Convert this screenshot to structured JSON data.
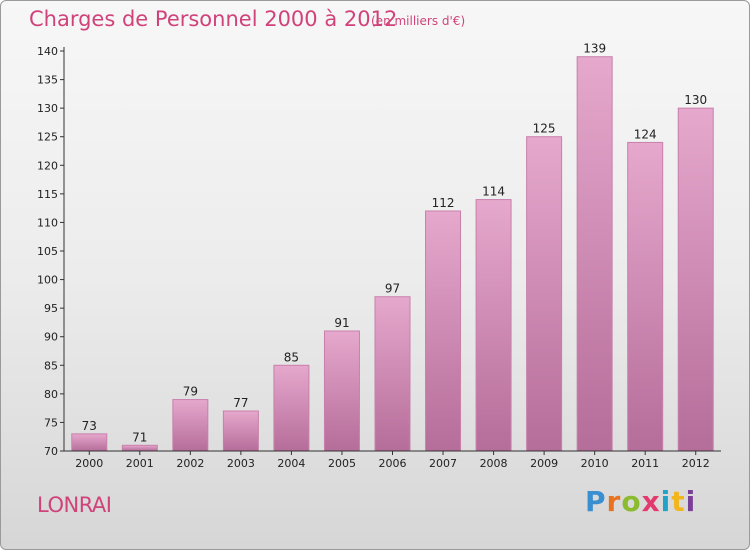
{
  "header": {
    "title": "Charges de Personnel 2000 à 2012",
    "subtitle": "(en milliers d'€)"
  },
  "footer": {
    "commune": "LONRAI",
    "logo": "Proxiti",
    "logo_colors": [
      "#3a8fd0",
      "#e8731e",
      "#8bbb2e",
      "#e23a6d",
      "#1fa3c9",
      "#f2b61c",
      "#7a3f96"
    ]
  },
  "colors": {
    "accent": "#d0437a",
    "bar_top": "#e6a8cd",
    "bar_bottom": "#b56d99",
    "bar_edge": "#c880ab",
    "axis": "#333333"
  },
  "chart_data": {
    "type": "bar",
    "title": "Charges de Personnel 2000 à 2012",
    "subtitle": "(en milliers d'€)",
    "categories": [
      "2000",
      "2001",
      "2002",
      "2003",
      "2004",
      "2005",
      "2006",
      "2007",
      "2008",
      "2009",
      "2010",
      "2011",
      "2012"
    ],
    "values": [
      73,
      71,
      79,
      77,
      85,
      91,
      97,
      112,
      114,
      125,
      139,
      124,
      130
    ],
    "ylim": [
      70,
      140
    ],
    "yticks": [
      70,
      75,
      80,
      85,
      90,
      95,
      100,
      105,
      110,
      115,
      120,
      125,
      130,
      135,
      140
    ],
    "xlabel": "",
    "ylabel": "",
    "grid": false
  }
}
